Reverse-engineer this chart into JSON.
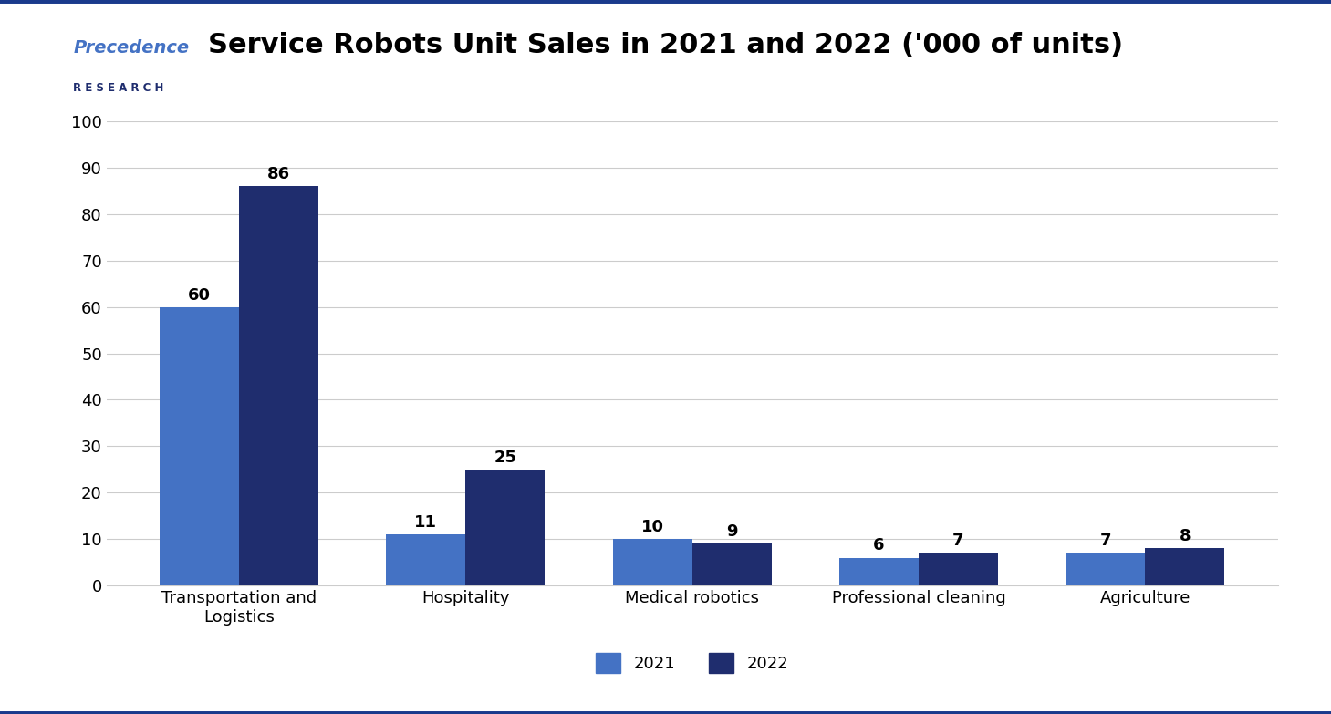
{
  "title": "Service Robots Unit Sales in 2021 and 2022 ('000 of units)",
  "categories": [
    "Transportation and\nLogistics",
    "Hospitality",
    "Medical robotics",
    "Professional cleaning",
    "Agriculture"
  ],
  "values_2021": [
    60,
    11,
    10,
    6,
    7
  ],
  "values_2022": [
    86,
    25,
    9,
    7,
    8
  ],
  "color_2021": "#4472C4",
  "color_2022": "#1F2D6E",
  "ylim": [
    0,
    100
  ],
  "yticks": [
    0,
    10,
    20,
    30,
    40,
    50,
    60,
    70,
    80,
    90,
    100
  ],
  "bar_width": 0.35,
  "legend_labels": [
    "2021",
    "2022"
  ],
  "title_fontsize": 22,
  "tick_fontsize": 13,
  "label_fontsize": 13,
  "value_fontsize": 13,
  "background_color": "#FFFFFF",
  "grid_color": "#CCCCCC",
  "border_color": "#1a3a8c",
  "logo_text_color": "#4472C4",
  "logo_sub_color": "#1F2D6E"
}
